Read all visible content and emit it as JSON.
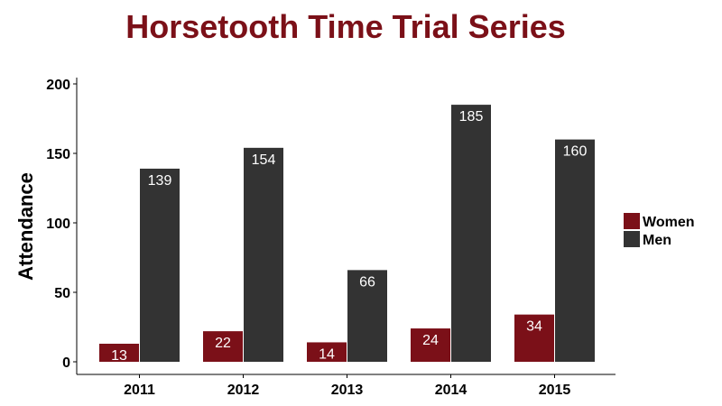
{
  "chart_data": {
    "type": "bar",
    "title": "Horsetooth Time Trial Series",
    "xlabel": "",
    "ylabel": "Attendance",
    "categories": [
      "2011",
      "2012",
      "2013",
      "2014",
      "2015"
    ],
    "series": [
      {
        "name": "Women",
        "color": "#7B1018",
        "values": [
          13,
          22,
          14,
          24,
          34
        ]
      },
      {
        "name": "Men",
        "color": "#333333",
        "values": [
          139,
          154,
          66,
          185,
          160
        ]
      }
    ],
    "ylim": [
      0,
      200
    ],
    "yticks": [
      0,
      50,
      100,
      150,
      200
    ],
    "grid": false,
    "legend_position": "right"
  }
}
